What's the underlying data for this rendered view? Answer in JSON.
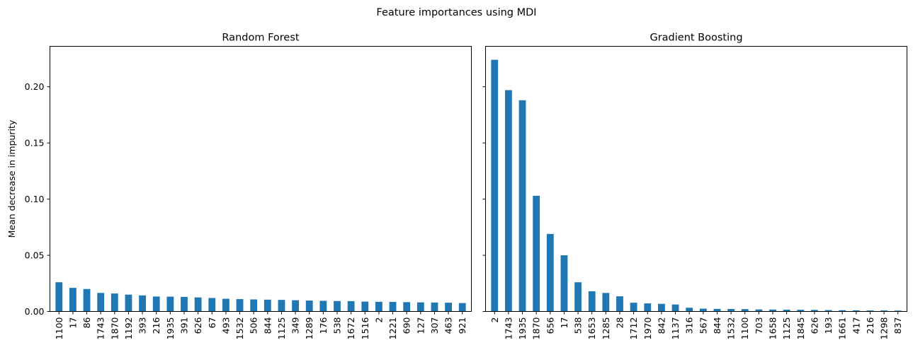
{
  "figure": {
    "suptitle": "Feature importances using MDI",
    "bar_color": "#1f77b4",
    "ylabel": "Mean decrease in impurity"
  },
  "chart_data": [
    {
      "type": "bar",
      "title": "Random Forest",
      "xlabel": "",
      "ylabel": "Mean decrease in impurity",
      "ylim": [
        0,
        0.236
      ],
      "yticks": [
        "0.00",
        "0.05",
        "0.10",
        "0.15",
        "0.20"
      ],
      "grid": false,
      "categories": [
        "1100",
        "17",
        "86",
        "1743",
        "1870",
        "1192",
        "393",
        "216",
        "1935",
        "391",
        "626",
        "67",
        "493",
        "1532",
        "506",
        "844",
        "1125",
        "349",
        "1289",
        "176",
        "538",
        "1672",
        "1516",
        "2",
        "1221",
        "690",
        "127",
        "307",
        "463",
        "921"
      ],
      "values": [
        0.026,
        0.021,
        0.02,
        0.0165,
        0.016,
        0.015,
        0.0143,
        0.0133,
        0.0132,
        0.013,
        0.0125,
        0.012,
        0.0113,
        0.011,
        0.0107,
        0.0105,
        0.0103,
        0.01,
        0.0097,
        0.0095,
        0.0093,
        0.0092,
        0.0088,
        0.0086,
        0.0085,
        0.0083,
        0.0081,
        0.008,
        0.0078,
        0.0075
      ]
    },
    {
      "type": "bar",
      "title": "Gradient Boosting",
      "xlabel": "",
      "ylabel": "",
      "ylim": [
        0,
        0.236
      ],
      "grid": false,
      "categories": [
        "2",
        "1743",
        "1935",
        "1870",
        "656",
        "17",
        "538",
        "1653",
        "1285",
        "28",
        "1712",
        "1970",
        "842",
        "1137",
        "316",
        "567",
        "844",
        "1532",
        "1100",
        "703",
        "1658",
        "1125",
        "1845",
        "626",
        "193",
        "1661",
        "417",
        "216",
        "1298",
        "837"
      ],
      "values": [
        0.224,
        0.197,
        0.188,
        0.103,
        0.069,
        0.05,
        0.026,
        0.018,
        0.0165,
        0.0135,
        0.0078,
        0.0072,
        0.0068,
        0.0062,
        0.0033,
        0.0025,
        0.0023,
        0.0022,
        0.0021,
        0.0018,
        0.0017,
        0.0016,
        0.0015,
        0.0014,
        0.0012,
        0.0011,
        0.001,
        0.0009,
        0.0009,
        0.0008
      ]
    }
  ]
}
